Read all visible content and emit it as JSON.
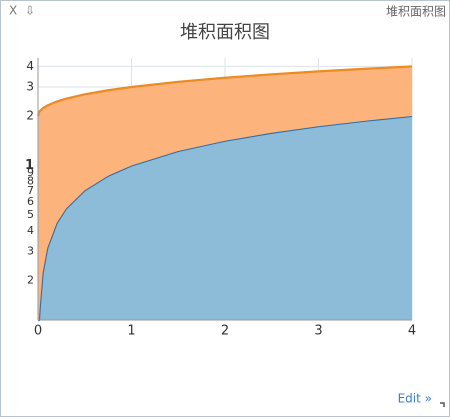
{
  "widget": {
    "close": "X",
    "pin": "⇩",
    "label": "堆积面积图",
    "edit": "Edit »"
  },
  "chart_data": {
    "type": "area",
    "stacked": true,
    "title": "堆积面积图",
    "x": [
      0,
      0.01,
      0.02,
      0.05,
      0.1,
      0.2,
      0.3,
      0.5,
      0.75,
      1,
      1.5,
      2,
      2.5,
      3,
      3.5,
      4
    ],
    "series": [
      {
        "color": "#8dbcd9",
        "line_color": "#2b6fae",
        "values": [
          0,
          0.1,
          0.141,
          0.224,
          0.316,
          0.447,
          0.548,
          0.707,
          0.866,
          1,
          1.225,
          1.414,
          1.581,
          1.732,
          1.871,
          2
        ]
      },
      {
        "color": "#fdb37c",
        "line_color": "#ee8a1e",
        "values": [
          2,
          2,
          2,
          2,
          2,
          2,
          2,
          2,
          2,
          2,
          2,
          2,
          2,
          2,
          2,
          2
        ]
      }
    ],
    "xlim": [
      0,
      4
    ],
    "xticks": [
      0,
      1,
      2,
      3,
      4
    ],
    "ylim": [
      0.115,
      4.5
    ],
    "log_y": true,
    "yticks": [
      {
        "value": 0.2,
        "label": "2"
      },
      {
        "value": 0.3,
        "label": "3"
      },
      {
        "value": 0.4,
        "label": "4"
      },
      {
        "value": 0.5,
        "label": "5"
      },
      {
        "value": 0.6,
        "label": "6"
      },
      {
        "value": 0.7,
        "label": "7"
      },
      {
        "value": 0.8,
        "label": "8"
      },
      {
        "value": 0.9,
        "label": "9"
      },
      1,
      2,
      3,
      4
    ],
    "grid": true
  }
}
